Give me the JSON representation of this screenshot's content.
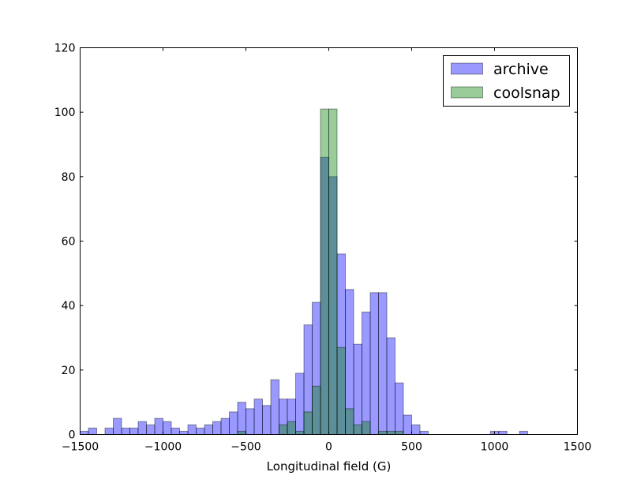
{
  "chart_data": {
    "type": "bar",
    "subtype": "overlapping-histogram",
    "title": "",
    "xlabel": "Longitudinal field (G)",
    "ylabel": "",
    "xlim": [
      -1500,
      1500
    ],
    "ylim": [
      0,
      120
    ],
    "xticks": [
      -1500,
      -1000,
      -500,
      0,
      500,
      1000,
      1500
    ],
    "xtick_labels": [
      "−1500",
      "−1000",
      "−500",
      "0",
      "500",
      "1000",
      "1500"
    ],
    "yticks": [
      0,
      20,
      40,
      60,
      80,
      100,
      120
    ],
    "ytick_labels": [
      "0",
      "20",
      "40",
      "60",
      "80",
      "100",
      "120"
    ],
    "grid": false,
    "legend_position": "top-right",
    "series": [
      {
        "name": "archive",
        "color": "#0000ff",
        "opacity": 0.4,
        "bin_width": 50,
        "bins": [
          {
            "x0": -1500,
            "count": 1
          },
          {
            "x0": -1450,
            "count": 2
          },
          {
            "x0": -1400,
            "count": 0
          },
          {
            "x0": -1350,
            "count": 2
          },
          {
            "x0": -1300,
            "count": 5
          },
          {
            "x0": -1250,
            "count": 2
          },
          {
            "x0": -1200,
            "count": 2
          },
          {
            "x0": -1150,
            "count": 4
          },
          {
            "x0": -1100,
            "count": 3
          },
          {
            "x0": -1050,
            "count": 5
          },
          {
            "x0": -1000,
            "count": 4
          },
          {
            "x0": -950,
            "count": 2
          },
          {
            "x0": -900,
            "count": 1
          },
          {
            "x0": -850,
            "count": 3
          },
          {
            "x0": -800,
            "count": 2
          },
          {
            "x0": -750,
            "count": 3
          },
          {
            "x0": -700,
            "count": 4
          },
          {
            "x0": -650,
            "count": 5
          },
          {
            "x0": -600,
            "count": 7
          },
          {
            "x0": -550,
            "count": 10
          },
          {
            "x0": -500,
            "count": 8
          },
          {
            "x0": -450,
            "count": 11
          },
          {
            "x0": -400,
            "count": 9
          },
          {
            "x0": -350,
            "count": 17
          },
          {
            "x0": -300,
            "count": 11
          },
          {
            "x0": -250,
            "count": 11
          },
          {
            "x0": -200,
            "count": 19
          },
          {
            "x0": -150,
            "count": 34
          },
          {
            "x0": -100,
            "count": 41
          },
          {
            "x0": -50,
            "count": 86
          },
          {
            "x0": 0,
            "count": 80
          },
          {
            "x0": 50,
            "count": 56
          },
          {
            "x0": 100,
            "count": 45
          },
          {
            "x0": 150,
            "count": 28
          },
          {
            "x0": 200,
            "count": 38
          },
          {
            "x0": 250,
            "count": 44
          },
          {
            "x0": 300,
            "count": 44
          },
          {
            "x0": 350,
            "count": 30
          },
          {
            "x0": 400,
            "count": 16
          },
          {
            "x0": 450,
            "count": 6
          },
          {
            "x0": 500,
            "count": 3
          },
          {
            "x0": 550,
            "count": 1
          },
          {
            "x0": 975,
            "count": 1
          },
          {
            "x0": 1025,
            "count": 1
          },
          {
            "x0": 1150,
            "count": 1
          }
        ]
      },
      {
        "name": "coolsnap",
        "color": "#008000",
        "opacity": 0.4,
        "bin_width": 50,
        "bins": [
          {
            "x0": -550,
            "count": 1
          },
          {
            "x0": -300,
            "count": 3
          },
          {
            "x0": -250,
            "count": 4
          },
          {
            "x0": -200,
            "count": 1
          },
          {
            "x0": -150,
            "count": 7
          },
          {
            "x0": -100,
            "count": 15
          },
          {
            "x0": -50,
            "count": 101
          },
          {
            "x0": 0,
            "count": 101
          },
          {
            "x0": 50,
            "count": 27
          },
          {
            "x0": 100,
            "count": 8
          },
          {
            "x0": 150,
            "count": 3
          },
          {
            "x0": 200,
            "count": 4
          },
          {
            "x0": 300,
            "count": 1
          },
          {
            "x0": 350,
            "count": 1
          },
          {
            "x0": 400,
            "count": 1
          }
        ]
      }
    ]
  }
}
